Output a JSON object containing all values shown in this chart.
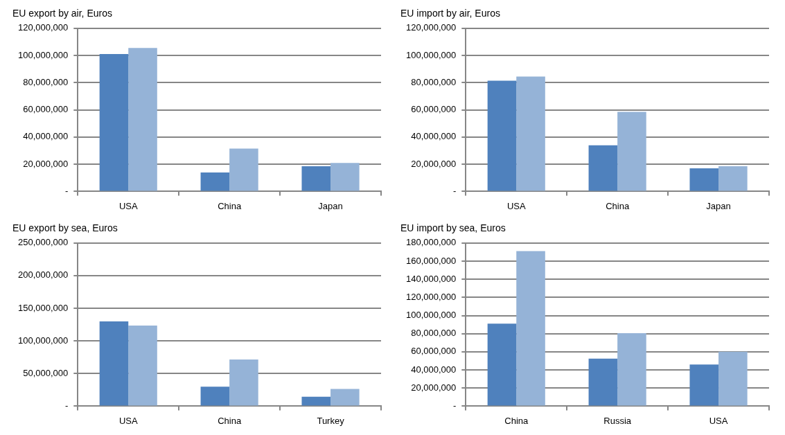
{
  "chart_data": [
    {
      "type": "bar",
      "title": "EU export by air, Euros",
      "categories": [
        "USA",
        "China",
        "Japan"
      ],
      "series": [
        {
          "color": "#4f81bd",
          "values": [
            101000000,
            14000000,
            18500000
          ]
        },
        {
          "color": "#95b3d7",
          "values": [
            105500000,
            31500000,
            21000000
          ]
        }
      ],
      "ylim": [
        0,
        120000000
      ],
      "yticks": [
        {
          "value": 0,
          "label": "-"
        },
        {
          "value": 20000000,
          "label": "20,000,000"
        },
        {
          "value": 40000000,
          "label": "40,000,000"
        },
        {
          "value": 60000000,
          "label": "60,000,000"
        },
        {
          "value": 80000000,
          "label": "80,000,000"
        },
        {
          "value": 100000000,
          "label": "100,000,000"
        },
        {
          "value": 120000000,
          "label": "120,000,000"
        }
      ],
      "grid": "y",
      "legend": false
    },
    {
      "type": "bar",
      "title": "EU import by air, Euros",
      "categories": [
        "USA",
        "China",
        "Japan"
      ],
      "series": [
        {
          "color": "#4f81bd",
          "values": [
            81500000,
            34000000,
            17000000
          ]
        },
        {
          "color": "#95b3d7",
          "values": [
            84500000,
            58500000,
            18500000
          ]
        }
      ],
      "ylim": [
        0,
        120000000
      ],
      "yticks": [
        {
          "value": 0,
          "label": "-"
        },
        {
          "value": 20000000,
          "label": "20,000,000"
        },
        {
          "value": 40000000,
          "label": "40,000,000"
        },
        {
          "value": 60000000,
          "label": "60,000,000"
        },
        {
          "value": 80000000,
          "label": "80,000,000"
        },
        {
          "value": 100000000,
          "label": "100,000,000"
        },
        {
          "value": 120000000,
          "label": "120,000,000"
        }
      ],
      "grid": "y",
      "legend": false
    },
    {
      "type": "bar",
      "title": "EU export by sea, Euros",
      "categories": [
        "USA",
        "China",
        "Turkey"
      ],
      "series": [
        {
          "color": "#4f81bd",
          "values": [
            130000000,
            30000000,
            14500000
          ]
        },
        {
          "color": "#95b3d7",
          "values": [
            123500000,
            71500000,
            26500000
          ]
        }
      ],
      "ylim": [
        0,
        250000000
      ],
      "yticks": [
        {
          "value": 0,
          "label": "-"
        },
        {
          "value": 50000000,
          "label": "50,000,000"
        },
        {
          "value": 100000000,
          "label": "100,000,000"
        },
        {
          "value": 150000000,
          "label": "150,000,000"
        },
        {
          "value": 200000000,
          "label": "200,000,000"
        },
        {
          "value": 250000000,
          "label": "250,000,000"
        }
      ],
      "grid": "y",
      "legend": false
    },
    {
      "type": "bar",
      "title": "EU import by sea, Euros",
      "categories": [
        "China",
        "Russia",
        "USA"
      ],
      "series": [
        {
          "color": "#4f81bd",
          "values": [
            91000000,
            52500000,
            46000000
          ]
        },
        {
          "color": "#95b3d7",
          "values": [
            171000000,
            80500000,
            60000000
          ]
        }
      ],
      "ylim": [
        0,
        180000000
      ],
      "yticks": [
        {
          "value": 0,
          "label": "-"
        },
        {
          "value": 20000000,
          "label": "20,000,000"
        },
        {
          "value": 40000000,
          "label": "40,000,000"
        },
        {
          "value": 60000000,
          "label": "60,000,000"
        },
        {
          "value": 80000000,
          "label": "80,000,000"
        },
        {
          "value": 100000000,
          "label": "100,000,000"
        },
        {
          "value": 120000000,
          "label": "120,000,000"
        },
        {
          "value": 140000000,
          "label": "140,000,000"
        },
        {
          "value": 160000000,
          "label": "160,000,000"
        },
        {
          "value": 180000000,
          "label": "180,000,000"
        }
      ],
      "grid": "y",
      "legend": false
    }
  ]
}
